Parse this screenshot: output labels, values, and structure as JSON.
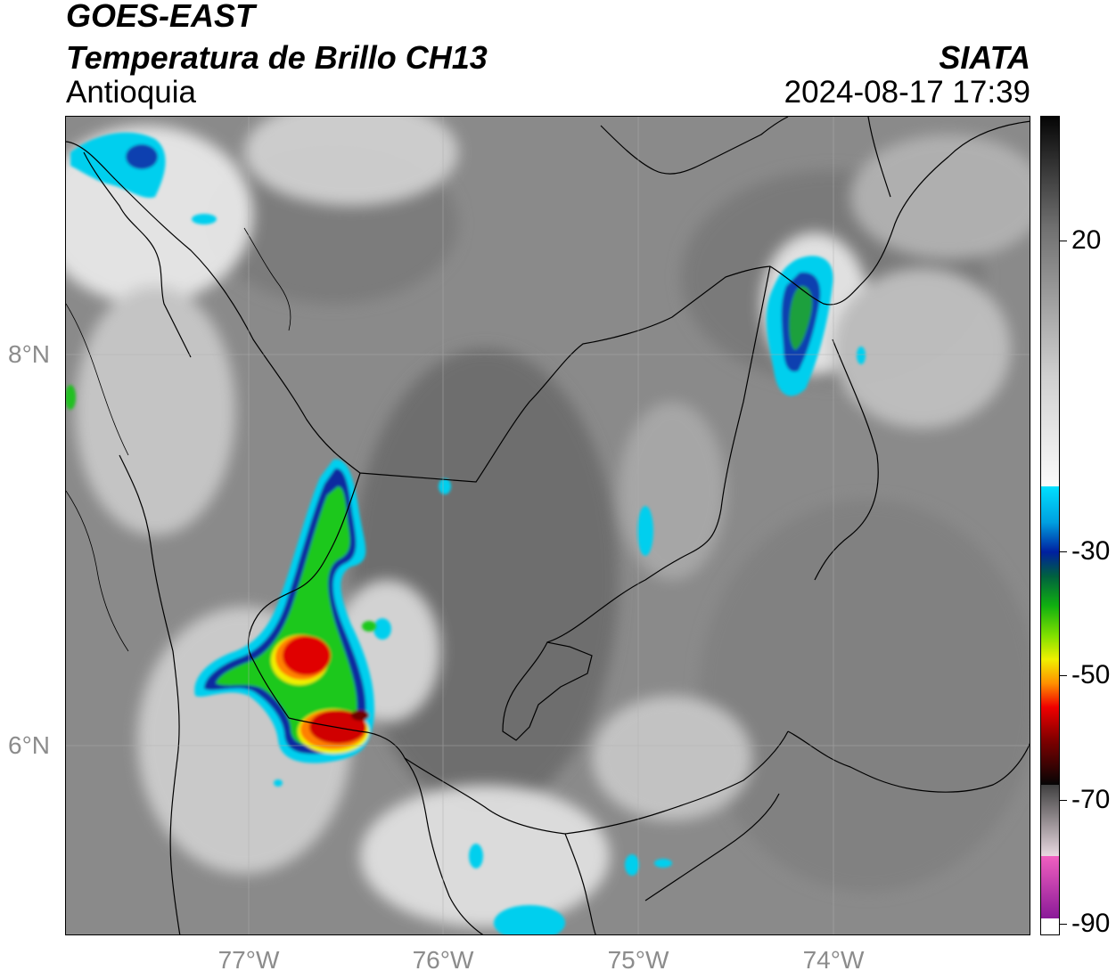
{
  "header": {
    "satellite": "GOES-EAST",
    "product": "Temperatura de Brillo CH13",
    "region": "Antioquia",
    "organization": "SIATA",
    "timestamp": "2024-08-17 17:39"
  },
  "map": {
    "lat_labels": [
      "8°N",
      "6°N"
    ],
    "lon_labels": [
      "77°W",
      "76°W",
      "75°W",
      "74°W"
    ]
  },
  "colorbar": {
    "ticks": [
      "20",
      "-30",
      "-50",
      "-70",
      "-90"
    ],
    "colors": {
      "warm_gray": "#8a8a8a",
      "cold_white": "#f5f5f5",
      "cyan": "#00d0f0",
      "blue": "#0a2aa0",
      "green": "#1ec81e",
      "yellow": "#f0f000",
      "orange": "#ff8000",
      "red": "#e00000",
      "dark_red": "#700000",
      "magenta": "#e060c0",
      "purple": "#9020a0"
    }
  }
}
